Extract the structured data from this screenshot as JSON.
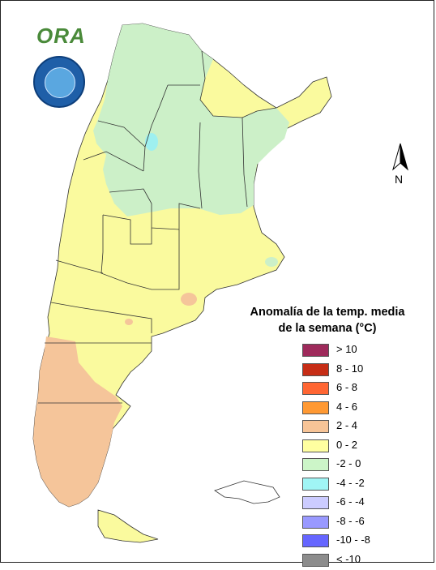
{
  "logo": {
    "text": "ORA"
  },
  "north_arrow": {
    "label": "N"
  },
  "legend": {
    "title_line1": "Anomalía de la temp. media",
    "title_line2": "de la semana (°C)",
    "items": [
      {
        "label": "> 10",
        "color": "#9e2a5b"
      },
      {
        "label": "8 - 10",
        "color": "#c62d16"
      },
      {
        "label": "6 - 8",
        "color": "#ff6633"
      },
      {
        "label": "4 - 6",
        "color": "#ff9933"
      },
      {
        "label": "2 - 4",
        "color": "#f7c497"
      },
      {
        "label": "0 - 2",
        "color": "#ffffa0"
      },
      {
        "label": "-2 - 0",
        "color": "#ccf5c8"
      },
      {
        "label": "-4 - -2",
        "color": "#a0f5f5"
      },
      {
        "label": "-6 - -4",
        "color": "#ccccff"
      },
      {
        "label": "-8 - -6",
        "color": "#9999ff"
      },
      {
        "label": "-10 - -8",
        "color": "#6666ff"
      },
      {
        "label": "< -10",
        "color": "#8c8c8c"
      }
    ]
  },
  "map_colors": {
    "anomaly_0_2": "#fafa9e",
    "anomaly_m2_0": "#ccf0c8",
    "anomaly_2_4": "#f5c59a",
    "anomaly_m4_m2": "#9ef0f0"
  }
}
